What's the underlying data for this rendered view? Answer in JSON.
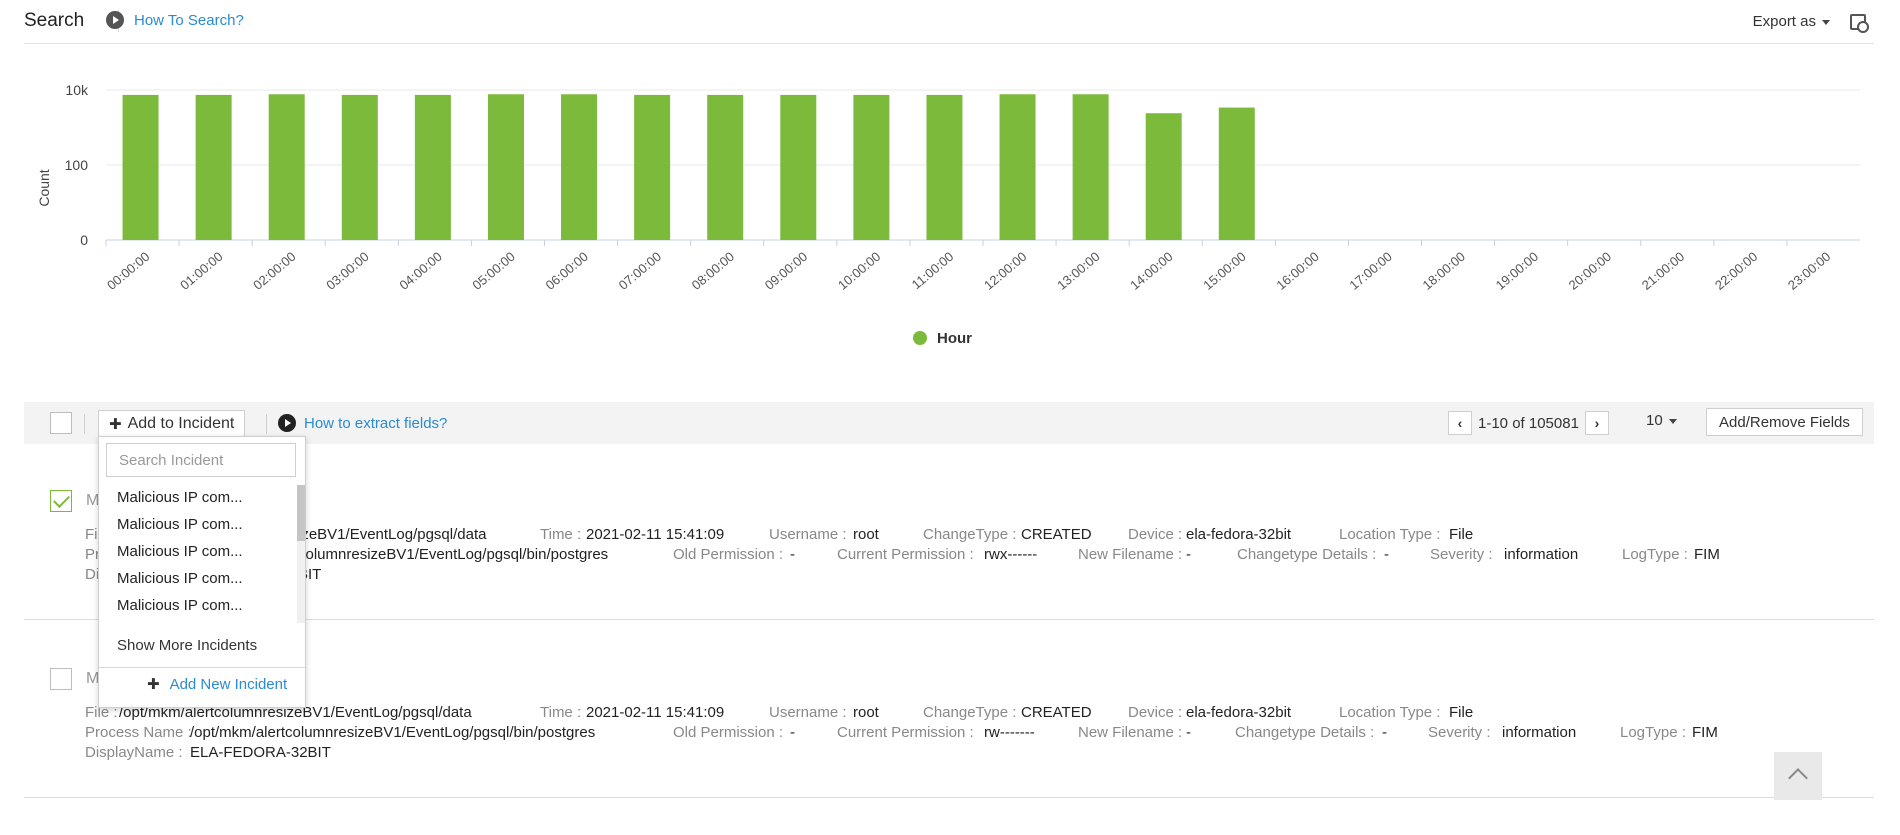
{
  "header": {
    "title": "Search",
    "how_to": "How To Search?",
    "export_label": "Export as"
  },
  "chart_data": {
    "type": "bar",
    "ylabel": "Count",
    "y_ticks": [
      "10k",
      "100",
      "0"
    ],
    "scale": "log",
    "categories": [
      "00:00:00",
      "01:00:00",
      "02:00:00",
      "03:00:00",
      "04:00:00",
      "05:00:00",
      "06:00:00",
      "07:00:00",
      "08:00:00",
      "09:00:00",
      "10:00:00",
      "11:00:00",
      "12:00:00",
      "13:00:00",
      "14:00:00",
      "15:00:00",
      "16:00:00",
      "17:00:00",
      "18:00:00",
      "19:00:00",
      "20:00:00",
      "21:00:00",
      "22:00:00",
      "23:00:00"
    ],
    "values": [
      7400,
      7400,
      7700,
      7400,
      7400,
      7700,
      7700,
      7400,
      7400,
      7400,
      7400,
      7400,
      7700,
      7700,
      2400,
      3400,
      0,
      0,
      0,
      0,
      0,
      0,
      0,
      0
    ],
    "series": [
      {
        "name": "Hour",
        "color": "#7cba3b"
      }
    ],
    "legend": "bottom-center"
  },
  "toolbar": {
    "add_incident": "Add to Incident",
    "extract_link": "How to extract fields?",
    "pager_range": "1-10 of 105081",
    "per_page": "10",
    "add_remove": "Add/Remove Fields"
  },
  "dropdown": {
    "search_placeholder": "Search Incident",
    "items": [
      "Malicious IP com...",
      "Malicious IP com...",
      "Malicious IP com...",
      "Malicious IP com...",
      "Malicious IP com..."
    ],
    "show_more": "Show More Incidents",
    "add_new": "Add New Incident"
  },
  "row1": {
    "title": "M",
    "l1": {
      "file_k": "Fil",
      "file_v": "izeBV1/EventLog/pgsql/data",
      "time_k": "Time :",
      "time_v": "2021-02-11 15:41:09",
      "user_k": "Username :",
      "user_v": "root",
      "ct_k": "ChangeType :",
      "ct_v": "CREATED",
      "dev_k": "Device :",
      "dev_v": "ela-fedora-32bit",
      "loc_k": "Location Type :",
      "loc_v": "File"
    },
    "l2": {
      "proc_k": "Pr",
      "proc_v": "columnresizeBV1/EventLog/pgsql/bin/postgres",
      "op_k": "Old Permission :",
      "op_v": "-",
      "cp_k": "Current Permission :",
      "cp_v": "rwx------",
      "nf_k": "New Filename :",
      "nf_v": "-",
      "cd_k": "Changetype Details :",
      "cd_v": "-",
      "sev_k": "Severity :",
      "sev_v": "information",
      "lt_k": "LogType :",
      "lt_v": "FIM"
    },
    "l3": {
      "dn_k": "Di",
      "dn_v": "BIT"
    }
  },
  "row2": {
    "title": "M",
    "l1": {
      "file_k": "File :",
      "file_v": "/opt/mkm/alertcolumnresizeBV1/EventLog/pgsql/data",
      "time_k": "Time :",
      "time_v": "2021-02-11 15:41:09",
      "user_k": "Username :",
      "user_v": "root",
      "ct_k": "ChangeType :",
      "ct_v": "CREATED",
      "dev_k": "Device :",
      "dev_v": "ela-fedora-32bit",
      "loc_k": "Location Type :",
      "loc_v": "File"
    },
    "l2": {
      "proc_k": "Process Name :",
      "proc_v": "/opt/mkm/alertcolumnresizeBV1/EventLog/pgsql/bin/postgres",
      "op_k": "Old Permission :",
      "op_v": "-",
      "cp_k": "Current Permission :",
      "cp_v": "rw-------",
      "nf_k": "New Filename :",
      "nf_v": "-",
      "cd_k": "Changetype Details :",
      "cd_v": "-",
      "sev_k": "Severity :",
      "sev_v": "information",
      "lt_k": "LogType :",
      "lt_v": "FIM"
    },
    "l3": {
      "dn_k": "DisplayName :",
      "dn_v": "ELA-FEDORA-32BIT"
    }
  }
}
